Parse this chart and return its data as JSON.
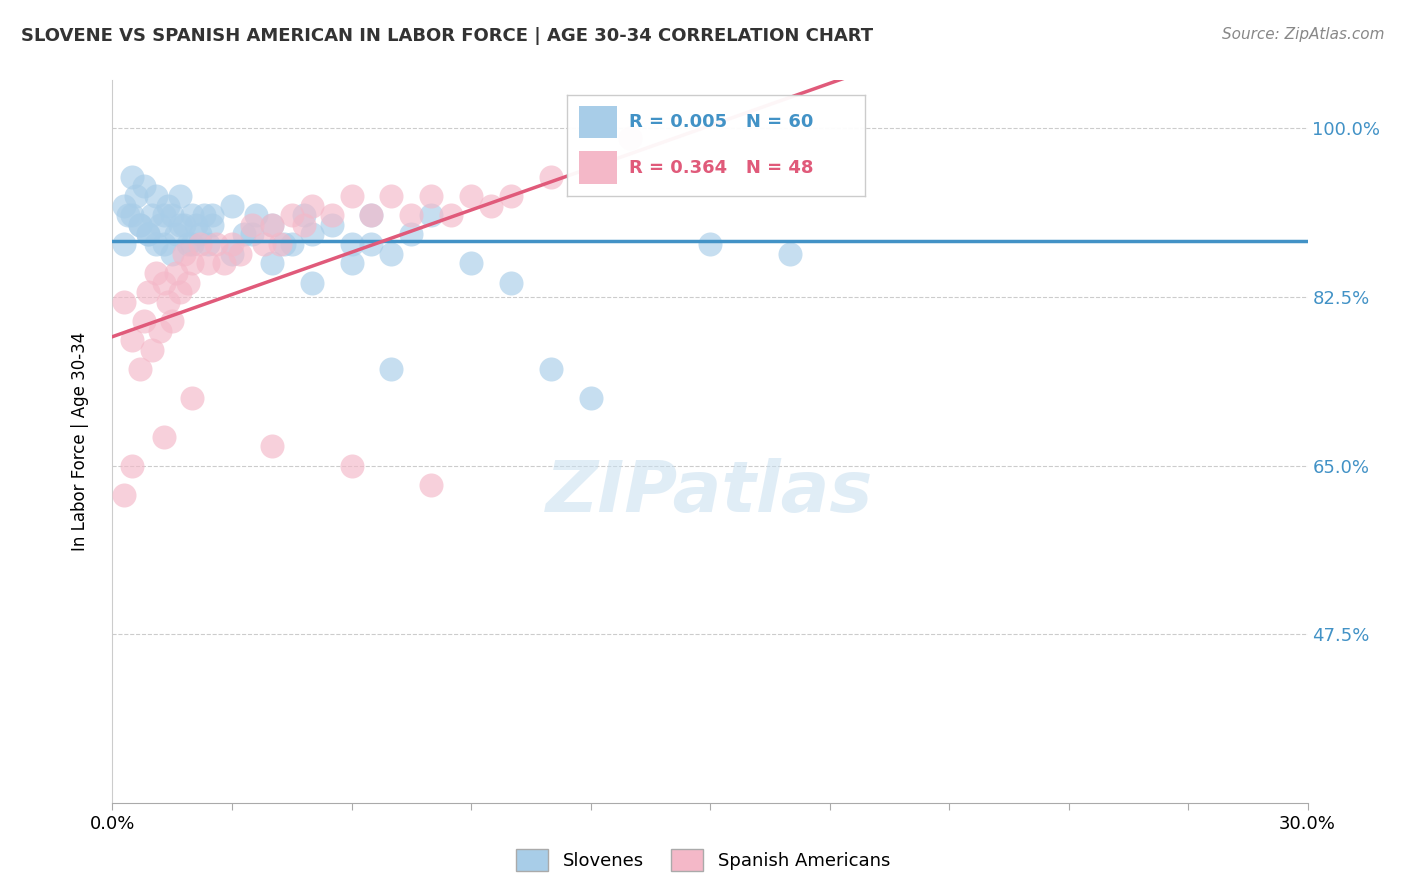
{
  "title": "SLOVENE VS SPANISH AMERICAN IN LABOR FORCE | AGE 30-34 CORRELATION CHART",
  "source": "Source: ZipAtlas.com",
  "xlabel": "",
  "ylabel": "In Labor Force | Age 30-34",
  "xlim": [
    0.0,
    0.3
  ],
  "ylim": [
    0.3,
    1.05
  ],
  "yticks": [
    0.475,
    0.65,
    0.825,
    1.0
  ],
  "ytick_labels": [
    "47.5%",
    "65.0%",
    "82.5%",
    "100.0%"
  ],
  "xticks": [
    0.0,
    0.03,
    0.06,
    0.09,
    0.12,
    0.15,
    0.18,
    0.21,
    0.24,
    0.27,
    0.3
  ],
  "xtick_labels": [
    "0.0%",
    "",
    "",
    "",
    "",
    "",
    "",
    "",
    "",
    "",
    "30.0%"
  ],
  "slovene_R": 0.005,
  "slovene_N": 60,
  "spanish_R": 0.364,
  "spanish_N": 48,
  "blue_color": "#a8cde8",
  "pink_color": "#f4b8c8",
  "line_blue": "#4292c6",
  "line_pink": "#e05a7a",
  "legend_label1": "Slovenes",
  "legend_label2": "Spanish Americans",
  "watermark": "ZIPatlas",
  "slovene_x": [
    0.003,
    0.004,
    0.005,
    0.006,
    0.007,
    0.008,
    0.009,
    0.01,
    0.011,
    0.012,
    0.013,
    0.014,
    0.015,
    0.016,
    0.017,
    0.018,
    0.019,
    0.02,
    0.021,
    0.022,
    0.023,
    0.024,
    0.025,
    0.03,
    0.033,
    0.036,
    0.04,
    0.043,
    0.048,
    0.05,
    0.055,
    0.06,
    0.065,
    0.07,
    0.075,
    0.08,
    0.09,
    0.1,
    0.11,
    0.12,
    0.003,
    0.005,
    0.007,
    0.009,
    0.011,
    0.013,
    0.015,
    0.017,
    0.02,
    0.025,
    0.03,
    0.035,
    0.04,
    0.045,
    0.05,
    0.06,
    0.065,
    0.07,
    0.15,
    0.17
  ],
  "slovene_y": [
    0.92,
    0.91,
    0.95,
    0.93,
    0.9,
    0.94,
    0.89,
    0.91,
    0.93,
    0.9,
    0.88,
    0.92,
    0.91,
    0.89,
    0.93,
    0.9,
    0.88,
    0.91,
    0.9,
    0.89,
    0.91,
    0.88,
    0.9,
    0.92,
    0.89,
    0.91,
    0.9,
    0.88,
    0.91,
    0.89,
    0.9,
    0.88,
    0.91,
    0.87,
    0.89,
    0.91,
    0.86,
    0.84,
    0.75,
    0.72,
    0.88,
    0.91,
    0.9,
    0.89,
    0.88,
    0.91,
    0.87,
    0.9,
    0.88,
    0.91,
    0.87,
    0.89,
    0.86,
    0.88,
    0.84,
    0.86,
    0.88,
    0.75,
    0.88,
    0.87
  ],
  "spanish_x": [
    0.003,
    0.005,
    0.007,
    0.008,
    0.009,
    0.01,
    0.011,
    0.012,
    0.013,
    0.014,
    0.015,
    0.016,
    0.017,
    0.018,
    0.019,
    0.02,
    0.022,
    0.024,
    0.026,
    0.028,
    0.03,
    0.032,
    0.035,
    0.038,
    0.04,
    0.042,
    0.045,
    0.048,
    0.05,
    0.055,
    0.06,
    0.065,
    0.07,
    0.075,
    0.08,
    0.085,
    0.09,
    0.095,
    0.1,
    0.11,
    0.003,
    0.005,
    0.013,
    0.02,
    0.04,
    0.06,
    0.08,
    0.13
  ],
  "spanish_y": [
    0.82,
    0.78,
    0.75,
    0.8,
    0.83,
    0.77,
    0.85,
    0.79,
    0.84,
    0.82,
    0.8,
    0.85,
    0.83,
    0.87,
    0.84,
    0.86,
    0.88,
    0.86,
    0.88,
    0.86,
    0.88,
    0.87,
    0.9,
    0.88,
    0.9,
    0.88,
    0.91,
    0.9,
    0.92,
    0.91,
    0.93,
    0.91,
    0.93,
    0.91,
    0.93,
    0.91,
    0.93,
    0.92,
    0.93,
    0.95,
    0.62,
    0.65,
    0.68,
    0.72,
    0.67,
    0.65,
    0.63,
    0.99
  ]
}
